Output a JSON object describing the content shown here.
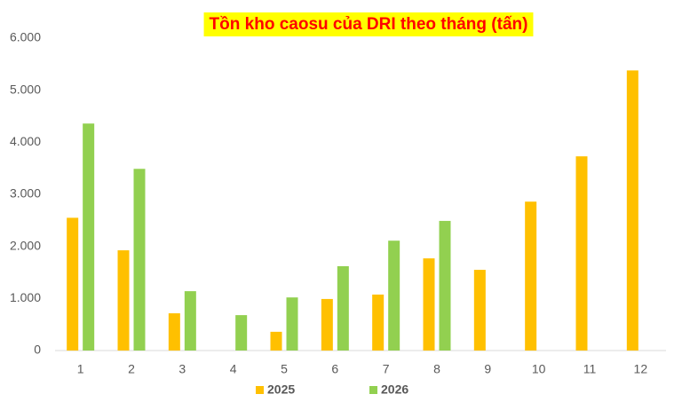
{
  "chart_data": {
    "type": "bar",
    "title": "Tồn kho caosu của DRI theo tháng (tấn)",
    "categories": [
      "1",
      "2",
      "3",
      "4",
      "5",
      "6",
      "7",
      "8",
      "9",
      "10",
      "11",
      "12"
    ],
    "series": [
      {
        "name": "2025",
        "color": "#ffc000",
        "values": [
          2550,
          1925,
          715,
          null,
          360,
          990,
          1075,
          1770,
          1550,
          2860,
          3730,
          5380
        ]
      },
      {
        "name": "2026",
        "color": "#92d050",
        "values": [
          4360,
          3490,
          1140,
          680,
          1020,
          1620,
          2110,
          2490,
          null,
          null,
          null,
          null
        ]
      }
    ],
    "ylim": [
      0,
      6000
    ],
    "yticks": [
      0,
      {
        "value": 1000,
        "label": "1.000"
      },
      {
        "value": 2000,
        "label": "2.000"
      },
      {
        "value": 3000,
        "label": "3.000"
      },
      {
        "value": 4000,
        "label": "4.000"
      },
      {
        "value": 5000,
        "label": "5.000"
      },
      {
        "value": 6000,
        "label": "6.000"
      }
    ],
    "grid": false,
    "legend": "bottom"
  }
}
